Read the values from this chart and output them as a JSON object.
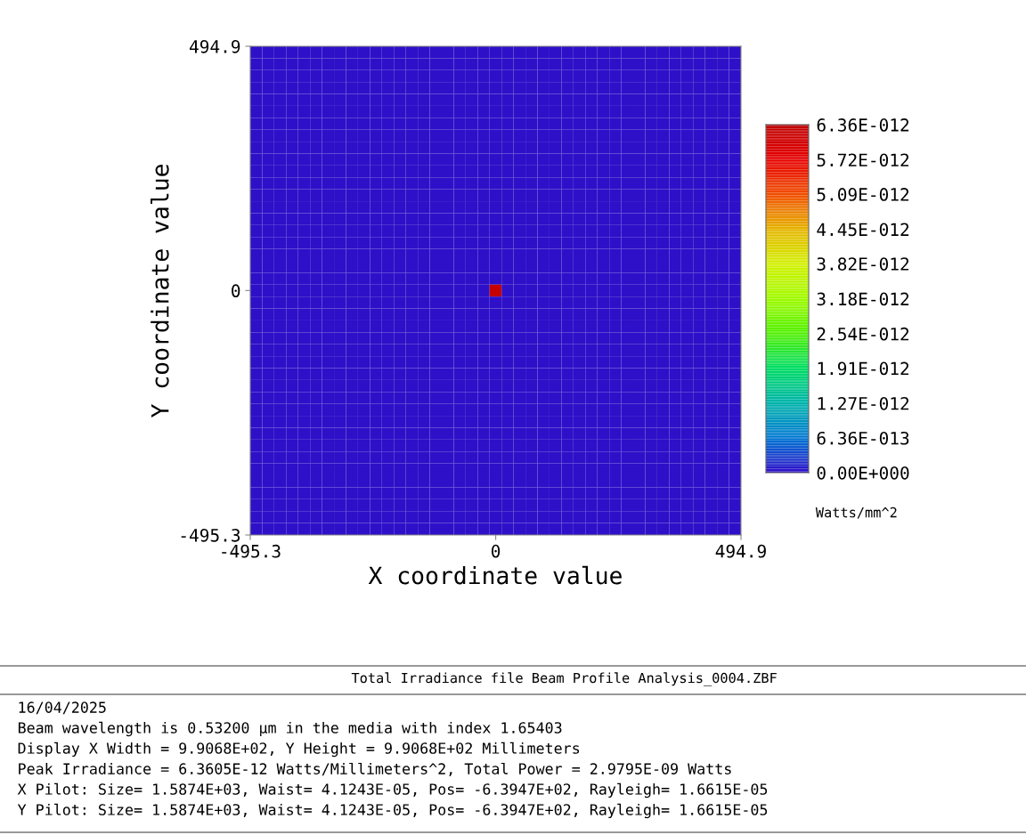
{
  "chart_data": {
    "type": "heatmap",
    "xlabel": "X coordinate value",
    "ylabel": "Y coordinate value",
    "clabel": "Watts/mm^2",
    "xlim": [
      -495.3,
      494.9
    ],
    "xticks": [
      -495.3,
      0,
      494.9
    ],
    "ylim": [
      -495.3,
      494.9
    ],
    "yticks": [
      -495.3,
      0,
      494.9
    ],
    "clim": [
      0,
      6.36e-12
    ],
    "cticks": [
      {
        "value": 0,
        "label": "0.00E+000"
      },
      {
        "value": 6.36e-13,
        "label": "6.36E-013"
      },
      {
        "value": 1.27e-12,
        "label": "1.27E-012"
      },
      {
        "value": 1.91e-12,
        "label": "1.91E-012"
      },
      {
        "value": 2.54e-12,
        "label": "2.54E-012"
      },
      {
        "value": 3.18e-12,
        "label": "3.18E-012"
      },
      {
        "value": 3.82e-12,
        "label": "3.82E-012"
      },
      {
        "value": 4.45e-12,
        "label": "4.45E-012"
      },
      {
        "value": 5.09e-12,
        "label": "5.09E-012"
      },
      {
        "value": 5.72e-12,
        "label": "5.72E-012"
      },
      {
        "value": 6.36e-12,
        "label": "6.36E-012"
      }
    ],
    "cells": [
      [
        0,
        0,
        0,
        0,
        0,
        0,
        0,
        0,
        0,
        0,
        0,
        0,
        0,
        0,
        0,
        0,
        0,
        0,
        0,
        0,
        0,
        0,
        0,
        0,
        0,
        0,
        0,
        0,
        0,
        0,
        0,
        0,
        0,
        0,
        0,
        0,
        0,
        0,
        0,
        0,
        0
      ],
      [
        0,
        0,
        0,
        0,
        0,
        0,
        0,
        0,
        0,
        0,
        0,
        0,
        0,
        0,
        0,
        0,
        0,
        0,
        0,
        0,
        0,
        0,
        0,
        0,
        0,
        0,
        0,
        0,
        0,
        0,
        0,
        0,
        0,
        0,
        0,
        0,
        0,
        0,
        0,
        0,
        0
      ],
      [
        0,
        0,
        0,
        0,
        0,
        0,
        0,
        0,
        0,
        0,
        0,
        0,
        0,
        0,
        0,
        0,
        0,
        0,
        0,
        0,
        0,
        0,
        0,
        0,
        0,
        0,
        0,
        0,
        0,
        0,
        0,
        0,
        0,
        0,
        0,
        0,
        0,
        0,
        0,
        0,
        0
      ],
      [
        0,
        0,
        0,
        0,
        0,
        0,
        0,
        0,
        0,
        0,
        0,
        0,
        0,
        0,
        0,
        0,
        0,
        0,
        0,
        0,
        0,
        0,
        0,
        0,
        0,
        0,
        0,
        0,
        0,
        0,
        0,
        0,
        0,
        0,
        0,
        0,
        0,
        0,
        0,
        0,
        0
      ],
      [
        0,
        0,
        0,
        0,
        0,
        0,
        0,
        0,
        0,
        0,
        0,
        0,
        0,
        0,
        0,
        0,
        0,
        0,
        0,
        0,
        0,
        0,
        0,
        0,
        0,
        0,
        0,
        0,
        0,
        0,
        0,
        0,
        0,
        0,
        0,
        0,
        0,
        0,
        0,
        0,
        0
      ],
      [
        0,
        0,
        0,
        0,
        0,
        0,
        0,
        0,
        0,
        0,
        0,
        0,
        0,
        0,
        0,
        0,
        0,
        0,
        0,
        0,
        0,
        0,
        0,
        0,
        0,
        0,
        0,
        0,
        0,
        0,
        0,
        0,
        0,
        0,
        0,
        0,
        0,
        0,
        0,
        0,
        0
      ],
      [
        0,
        0,
        0,
        0,
        0,
        0,
        0,
        0,
        0,
        0,
        0,
        0,
        0,
        0,
        0,
        0,
        0,
        0,
        0,
        0,
        0,
        0,
        0,
        0,
        0,
        0,
        0,
        0,
        0,
        0,
        0,
        0,
        0,
        0,
        0,
        0,
        0,
        0,
        0,
        0,
        0
      ],
      [
        0,
        0,
        0,
        0,
        0,
        0,
        0,
        0,
        0,
        0,
        0,
        0,
        0,
        0,
        0,
        0,
        0,
        0,
        0,
        0,
        0,
        0,
        0,
        0,
        0,
        0,
        0,
        0,
        0,
        0,
        0,
        0,
        0,
        0,
        0,
        0,
        0,
        0,
        0,
        0,
        0
      ],
      [
        0,
        0,
        0,
        0,
        0,
        0,
        0,
        0,
        0,
        0,
        0,
        0,
        0,
        0,
        0,
        0,
        0,
        0,
        0,
        0,
        0,
        0,
        0,
        0,
        0,
        0,
        0,
        0,
        0,
        0,
        0,
        0,
        0,
        0,
        0,
        0,
        0,
        0,
        0,
        0,
        0
      ],
      [
        0,
        0,
        0,
        0,
        0,
        0,
        0,
        0,
        0,
        0,
        0,
        0,
        0,
        0,
        0,
        0,
        0,
        0,
        0,
        0,
        0,
        0,
        0,
        0,
        0,
        0,
        0,
        0,
        0,
        0,
        0,
        0,
        0,
        0,
        0,
        0,
        0,
        0,
        0,
        0,
        0
      ],
      [
        0,
        0,
        0,
        0,
        0,
        0,
        0,
        0,
        0,
        0,
        0,
        0,
        0,
        0,
        0,
        0,
        0,
        0,
        0,
        0,
        0,
        0,
        0,
        0,
        0,
        0,
        0,
        0,
        0,
        0,
        0,
        0,
        0,
        0,
        0,
        0,
        0,
        0,
        0,
        0,
        0
      ],
      [
        0,
        0,
        0,
        0,
        0,
        0,
        0,
        0,
        0,
        0,
        0,
        0,
        0,
        0,
        0,
        0,
        0,
        0,
        0,
        0,
        0,
        0,
        0,
        0,
        0,
        0,
        0,
        0,
        0,
        0,
        0,
        0,
        0,
        0,
        0,
        0,
        0,
        0,
        0,
        0,
        0
      ],
      [
        0,
        0,
        0,
        0,
        0,
        0,
        0,
        0,
        0,
        0,
        0,
        0,
        0,
        0,
        0,
        0,
        0,
        0,
        0,
        0,
        0,
        0,
        0,
        0,
        0,
        0,
        0,
        0,
        0,
        0,
        0,
        0,
        0,
        0,
        0,
        0,
        0,
        0,
        0,
        0,
        0
      ],
      [
        0,
        0,
        0,
        0,
        0,
        0,
        0,
        0,
        0,
        0,
        0,
        0,
        0,
        0,
        0,
        0,
        0,
        0,
        0,
        0,
        0,
        0,
        0,
        0,
        0,
        0,
        0,
        0,
        0,
        0,
        0,
        0,
        0,
        0,
        0,
        0,
        0,
        0,
        0,
        0,
        0
      ],
      [
        0,
        0,
        0,
        0,
        0,
        0,
        0,
        0,
        0,
        0,
        0,
        0,
        0,
        0,
        0,
        0,
        0,
        0,
        0,
        0,
        0,
        0,
        0,
        0,
        0,
        0,
        0,
        0,
        0,
        0,
        0,
        0,
        0,
        0,
        0,
        0,
        0,
        0,
        0,
        0,
        0
      ],
      [
        0,
        0,
        0,
        0,
        0,
        0,
        0,
        0,
        0,
        0,
        0,
        0,
        0,
        0,
        0,
        0,
        0,
        0,
        0,
        0,
        0,
        0,
        0,
        0,
        0,
        0,
        0,
        0,
        0,
        0,
        0,
        0,
        0,
        0,
        0,
        0,
        0,
        0,
        0,
        0,
        0
      ],
      [
        0,
        0,
        0,
        0,
        0,
        0,
        0,
        0,
        0,
        0,
        0,
        0,
        0,
        0,
        0,
        0,
        0,
        0,
        0,
        0,
        0,
        0,
        0,
        0,
        0,
        0,
        0,
        0,
        0,
        0,
        0,
        0,
        0,
        0,
        0,
        0,
        0,
        0,
        0,
        0,
        0
      ],
      [
        0,
        0,
        0,
        0,
        0,
        0,
        0,
        0,
        0,
        0,
        0,
        0,
        0,
        0,
        0,
        0,
        0,
        0,
        0,
        0,
        0,
        0,
        0,
        0,
        0,
        0,
        0,
        0,
        0,
        0,
        0,
        0,
        0,
        0,
        0,
        0,
        0,
        0,
        0,
        0,
        0
      ],
      [
        0,
        0,
        0,
        0,
        0,
        0,
        0,
        0,
        0,
        0,
        0,
        0,
        0,
        0,
        0,
        0,
        0,
        0,
        0,
        0,
        0,
        0,
        0,
        0,
        0,
        0,
        0,
        0,
        0,
        0,
        0,
        0,
        0,
        0,
        0,
        0,
        0,
        0,
        0,
        0,
        0
      ],
      [
        0,
        0,
        0,
        0,
        0,
        0,
        0,
        0,
        0,
        0,
        0,
        0,
        0,
        0,
        0,
        0,
        0,
        0,
        0,
        0,
        0,
        0,
        0,
        0,
        0,
        0,
        0,
        0,
        0,
        0,
        0,
        0,
        0,
        0,
        0,
        0,
        0,
        0,
        0,
        0,
        0
      ],
      [
        0,
        0,
        0,
        0,
        0,
        0,
        0,
        0,
        0,
        0,
        0,
        0,
        0,
        0,
        0,
        0,
        0,
        0,
        0,
        0,
        6.2e-12,
        0,
        0,
        0,
        0,
        0,
        0,
        0,
        0,
        0,
        0,
        0,
        0,
        0,
        0,
        0,
        0,
        0,
        0,
        0,
        0
      ],
      [
        0,
        0,
        0,
        0,
        0,
        0,
        0,
        0,
        0,
        0,
        0,
        0,
        0,
        0,
        0,
        0,
        0,
        0,
        0,
        0,
        0,
        0,
        0,
        0,
        0,
        0,
        0,
        0,
        0,
        0,
        0,
        0,
        0,
        0,
        0,
        0,
        0,
        0,
        0,
        0,
        0
      ],
      [
        0,
        0,
        0,
        0,
        0,
        0,
        0,
        0,
        0,
        0,
        0,
        0,
        0,
        0,
        0,
        0,
        0,
        0,
        0,
        0,
        0,
        0,
        0,
        0,
        0,
        0,
        0,
        0,
        0,
        0,
        0,
        0,
        0,
        0,
        0,
        0,
        0,
        0,
        0,
        0,
        0
      ],
      [
        0,
        0,
        0,
        0,
        0,
        0,
        0,
        0,
        0,
        0,
        0,
        0,
        0,
        0,
        0,
        0,
        0,
        0,
        0,
        0,
        0,
        0,
        0,
        0,
        0,
        0,
        0,
        0,
        0,
        0,
        0,
        0,
        0,
        0,
        0,
        0,
        0,
        0,
        0,
        0,
        0
      ],
      [
        0,
        0,
        0,
        0,
        0,
        0,
        0,
        0,
        0,
        0,
        0,
        0,
        0,
        0,
        0,
        0,
        0,
        0,
        0,
        0,
        0,
        0,
        0,
        0,
        0,
        0,
        0,
        0,
        0,
        0,
        0,
        0,
        0,
        0,
        0,
        0,
        0,
        0,
        0,
        0,
        0
      ],
      [
        0,
        0,
        0,
        0,
        0,
        0,
        0,
        0,
        0,
        0,
        0,
        0,
        0,
        0,
        0,
        0,
        0,
        0,
        0,
        0,
        0,
        0,
        0,
        0,
        0,
        0,
        0,
        0,
        0,
        0,
        0,
        0,
        0,
        0,
        0,
        0,
        0,
        0,
        0,
        0,
        0
      ],
      [
        0,
        0,
        0,
        0,
        0,
        0,
        0,
        0,
        0,
        0,
        0,
        0,
        0,
        0,
        0,
        0,
        0,
        0,
        0,
        0,
        0,
        0,
        0,
        0,
        0,
        0,
        0,
        0,
        0,
        0,
        0,
        0,
        0,
        0,
        0,
        0,
        0,
        0,
        0,
        0,
        0
      ],
      [
        0,
        0,
        0,
        0,
        0,
        0,
        0,
        0,
        0,
        0,
        0,
        0,
        0,
        0,
        0,
        0,
        0,
        0,
        0,
        0,
        0,
        0,
        0,
        0,
        0,
        0,
        0,
        0,
        0,
        0,
        0,
        0,
        0,
        0,
        0,
        0,
        0,
        0,
        0,
        0,
        0
      ],
      [
        0,
        0,
        0,
        0,
        0,
        0,
        0,
        0,
        0,
        0,
        0,
        0,
        0,
        0,
        0,
        0,
        0,
        0,
        0,
        0,
        0,
        0,
        0,
        0,
        0,
        0,
        0,
        0,
        0,
        0,
        0,
        0,
        0,
        0,
        0,
        0,
        0,
        0,
        0,
        0,
        0
      ],
      [
        0,
        0,
        0,
        0,
        0,
        0,
        0,
        0,
        0,
        0,
        0,
        0,
        0,
        0,
        0,
        0,
        0,
        0,
        0,
        0,
        0,
        0,
        0,
        0,
        0,
        0,
        0,
        0,
        0,
        0,
        0,
        0,
        0,
        0,
        0,
        0,
        0,
        0,
        0,
        0,
        0
      ],
      [
        0,
        0,
        0,
        0,
        0,
        0,
        0,
        0,
        0,
        0,
        0,
        0,
        0,
        0,
        0,
        0,
        0,
        0,
        0,
        0,
        0,
        0,
        0,
        0,
        0,
        0,
        0,
        0,
        0,
        0,
        0,
        0,
        0,
        0,
        0,
        0,
        0,
        0,
        0,
        0,
        0
      ],
      [
        0,
        0,
        0,
        0,
        0,
        0,
        0,
        0,
        0,
        0,
        0,
        0,
        0,
        0,
        0,
        0,
        0,
        0,
        0,
        0,
        0,
        0,
        0,
        0,
        0,
        0,
        0,
        0,
        0,
        0,
        0,
        0,
        0,
        0,
        0,
        0,
        0,
        0,
        0,
        0,
        0
      ],
      [
        0,
        0,
        0,
        0,
        0,
        0,
        0,
        0,
        0,
        0,
        0,
        0,
        0,
        0,
        0,
        0,
        0,
        0,
        0,
        0,
        0,
        0,
        0,
        0,
        0,
        0,
        0,
        0,
        0,
        0,
        0,
        0,
        0,
        0,
        0,
        0,
        0,
        0,
        0,
        0,
        0
      ],
      [
        0,
        0,
        0,
        0,
        0,
        0,
        0,
        0,
        0,
        0,
        0,
        0,
        0,
        0,
        0,
        0,
        0,
        0,
        0,
        0,
        0,
        0,
        0,
        0,
        0,
        0,
        0,
        0,
        0,
        0,
        0,
        0,
        0,
        0,
        0,
        0,
        0,
        0,
        0,
        0,
        0
      ],
      [
        0,
        0,
        0,
        0,
        0,
        0,
        0,
        0,
        0,
        0,
        0,
        0,
        0,
        0,
        0,
        0,
        0,
        0,
        0,
        0,
        0,
        0,
        0,
        0,
        0,
        0,
        0,
        0,
        0,
        0,
        0,
        0,
        0,
        0,
        0,
        0,
        0,
        0,
        0,
        0,
        0
      ],
      [
        0,
        0,
        0,
        0,
        0,
        0,
        0,
        0,
        0,
        0,
        0,
        0,
        0,
        0,
        0,
        0,
        0,
        0,
        0,
        0,
        0,
        0,
        0,
        0,
        0,
        0,
        0,
        0,
        0,
        0,
        0,
        0,
        0,
        0,
        0,
        0,
        0,
        0,
        0,
        0,
        0
      ],
      [
        0,
        0,
        0,
        0,
        0,
        0,
        0,
        0,
        0,
        0,
        0,
        0,
        0,
        0,
        0,
        0,
        0,
        0,
        0,
        0,
        0,
        0,
        0,
        0,
        0,
        0,
        0,
        0,
        0,
        0,
        0,
        0,
        0,
        0,
        0,
        0,
        0,
        0,
        0,
        0,
        0
      ],
      [
        0,
        0,
        0,
        0,
        0,
        0,
        0,
        0,
        0,
        0,
        0,
        0,
        0,
        0,
        0,
        0,
        0,
        0,
        0,
        0,
        0,
        0,
        0,
        0,
        0,
        0,
        0,
        0,
        0,
        0,
        0,
        0,
        0,
        0,
        0,
        0,
        0,
        0,
        0,
        0,
        0
      ],
      [
        0,
        0,
        0,
        0,
        0,
        0,
        0,
        0,
        0,
        0,
        0,
        0,
        0,
        0,
        0,
        0,
        0,
        0,
        0,
        0,
        0,
        0,
        0,
        0,
        0,
        0,
        0,
        0,
        0,
        0,
        0,
        0,
        0,
        0,
        0,
        0,
        0,
        0,
        0,
        0,
        0
      ],
      [
        0,
        0,
        0,
        0,
        0,
        0,
        0,
        0,
        0,
        0,
        0,
        0,
        0,
        0,
        0,
        0,
        0,
        0,
        0,
        0,
        0,
        0,
        0,
        0,
        0,
        0,
        0,
        0,
        0,
        0,
        0,
        0,
        0,
        0,
        0,
        0,
        0,
        0,
        0,
        0,
        0
      ],
      [
        0,
        0,
        0,
        0,
        0,
        0,
        0,
        0,
        0,
        0,
        0,
        0,
        0,
        0,
        0,
        0,
        0,
        0,
        0,
        0,
        0,
        0,
        0,
        0,
        0,
        0,
        0,
        0,
        0,
        0,
        0,
        0,
        0,
        0,
        0,
        0,
        0,
        0,
        0,
        0,
        0
      ]
    ],
    "annotations": [
      "Total Irradiance file Beam Profile Analysis_0004.ZBF",
      "16/04/2025",
      "Beam wavelength is 0.53200 µm in the media with index 1.65403",
      "Display X Width = 9.9068E+02, Y Height = 9.9068E+02 Millimeters",
      "Peak Irradiance = 6.3605E-12 Watts/Millimeters^2, Total Power = 2.9795E-09 Watts",
      "X Pilot: Size= 1.5874E+03, Waist= 4.1243E-05, Pos= -6.3947E+02, Rayleigh= 1.6615E-05",
      "Y Pilot: Size= 1.5874E+03, Waist= 4.1243E-05, Pos= -6.3947E+02, Rayleigh= 1.6615E-05"
    ]
  }
}
